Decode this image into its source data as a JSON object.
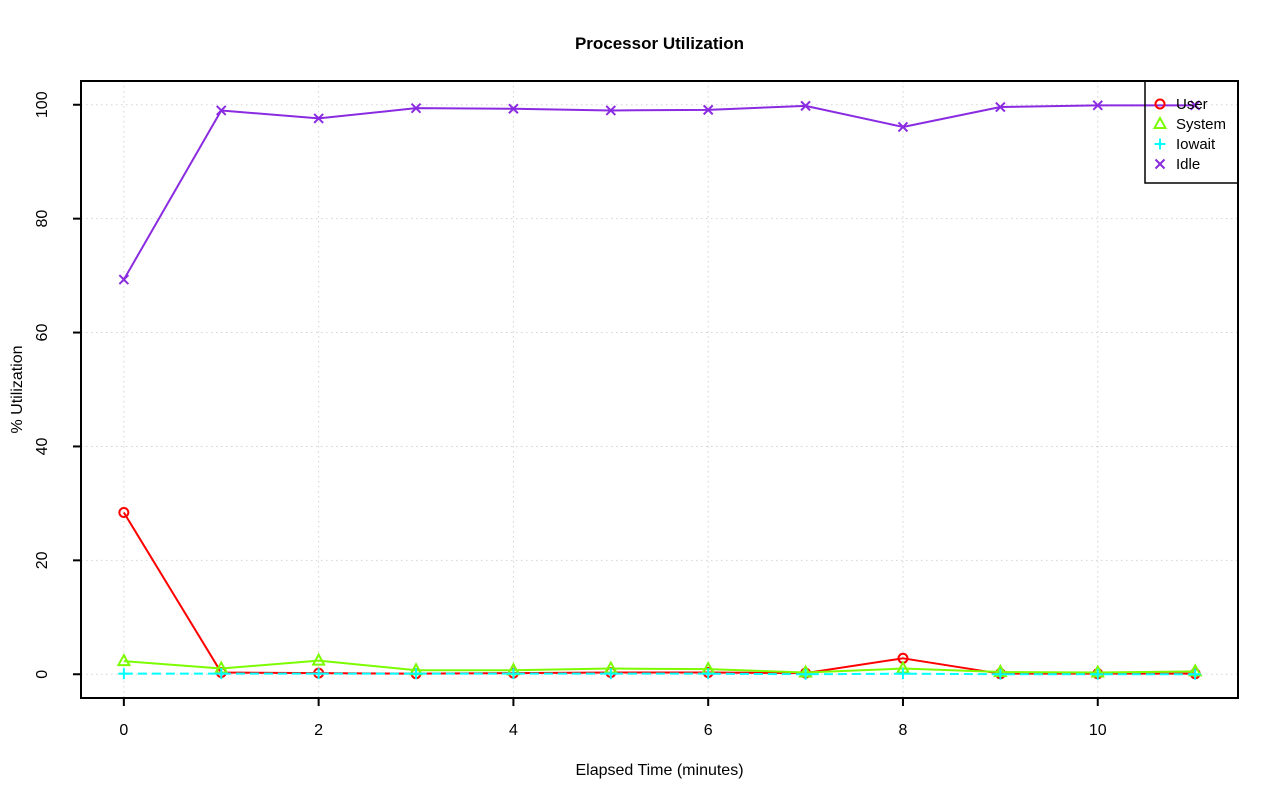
{
  "chart_data": {
    "type": "line",
    "title": "Processor Utilization",
    "xlabel": "Elapsed Time (minutes)",
    "ylabel": "% Utilization",
    "x": [
      0,
      1,
      2,
      3,
      4,
      5,
      6,
      7,
      8,
      9,
      10,
      11
    ],
    "x_ticks": [
      0,
      2,
      4,
      6,
      8,
      10
    ],
    "y_ticks": [
      0,
      20,
      40,
      60,
      80,
      100
    ],
    "xlim": [
      -0.44,
      11.44
    ],
    "ylim": [
      -4.17,
      104.17
    ],
    "grid": true,
    "grid_style": "dotted",
    "legend_position": "top-right",
    "legend": [
      "User",
      "System",
      "Iowait",
      "Idle"
    ],
    "series": [
      {
        "name": "User",
        "color": "#FF0000",
        "marker": "circle",
        "line_style": "solid",
        "values": [
          28.4,
          0.3,
          0.2,
          0.1,
          0.2,
          0.3,
          0.3,
          0.2,
          2.8,
          0.1,
          0.1,
          0.1
        ]
      },
      {
        "name": "System",
        "color": "#7CFC00",
        "marker": "triangle",
        "line_style": "solid",
        "values": [
          2.3,
          1.0,
          2.4,
          0.7,
          0.7,
          1.0,
          0.9,
          0.3,
          1.0,
          0.4,
          0.3,
          0.5
        ]
      },
      {
        "name": "Iowait",
        "color": "#00FFFF",
        "marker": "plus",
        "line_style": "dashed",
        "values": [
          0.1,
          0.1,
          0.1,
          0.1,
          0.1,
          0.1,
          0.1,
          0.0,
          0.1,
          0.0,
          0.0,
          0.0
        ]
      },
      {
        "name": "Idle",
        "color": "#8A2BE2",
        "marker": "x",
        "line_style": "solid",
        "values": [
          69.3,
          99.0,
          97.6,
          99.4,
          99.3,
          99.0,
          99.1,
          99.8,
          96.1,
          99.6,
          99.9,
          99.9
        ]
      }
    ],
    "colors": {
      "grid": "#D3D3D3",
      "axis": "#000000",
      "background": "#FFFFFF"
    }
  }
}
